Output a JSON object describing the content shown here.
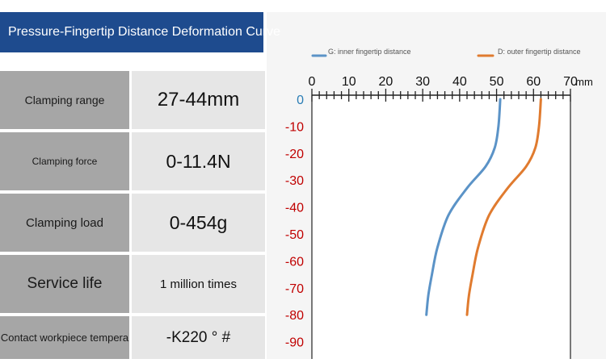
{
  "title": "Pressure-Fingertip Distance Deformation Curve",
  "specs": [
    {
      "label": "Clamping range",
      "value": "27-44mm"
    },
    {
      "label": "Clamping force",
      "value": "0-11.4N"
    },
    {
      "label": "Clamping load",
      "value": "0-454g"
    },
    {
      "label": "Service life",
      "value": "1 million times"
    },
    {
      "label": "Contact workpiece tempera",
      "value": "-K220 ° #"
    }
  ],
  "colors": {
    "inner": "#5b93c7",
    "outer": "#e07b2f",
    "title_bg": "#1e4b8e",
    "y_ticks": "#c00000"
  },
  "chart_data": {
    "type": "line",
    "title": "",
    "xlabel": "mm",
    "ylabel": "",
    "xlim": [
      0,
      70
    ],
    "ylim": [
      -95,
      0
    ],
    "x_ticks": [
      0,
      10,
      20,
      30,
      40,
      50,
      60,
      70
    ],
    "y_ticks": [
      0,
      -10,
      -20,
      -30,
      -40,
      -50,
      -60,
      -70,
      -80,
      -90
    ],
    "legend_position": "top",
    "series": [
      {
        "name": "G: inner fingertip distance",
        "color": "#5b93c7",
        "x": [
          51,
          50.5,
          49.5,
          47,
          42,
          37,
          34,
          32.5,
          31.5,
          31
        ],
        "y": [
          0,
          -10,
          -18,
          -25,
          -33,
          -43,
          -55,
          -65,
          -73,
          -80
        ]
      },
      {
        "name": "D: outer fingertip distance",
        "color": "#e07b2f",
        "x": [
          62,
          61.5,
          60.5,
          58,
          53,
          48,
          45,
          43.5,
          42.5,
          42
        ],
        "y": [
          0,
          -10,
          -18,
          -25,
          -33,
          -43,
          -55,
          -65,
          -73,
          -80
        ]
      }
    ]
  }
}
